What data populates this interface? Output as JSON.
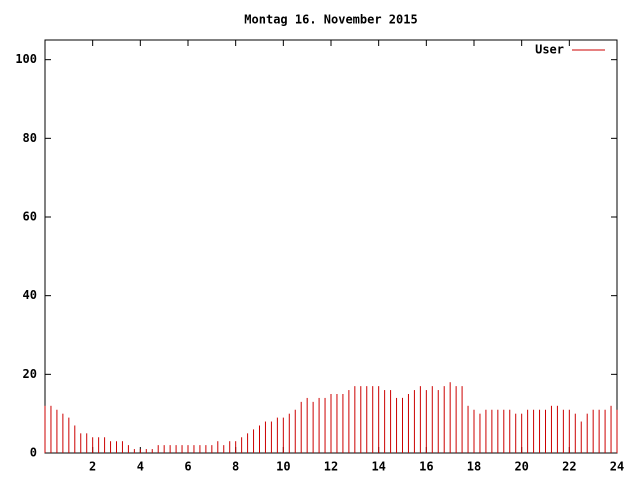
{
  "chart_data": {
    "type": "impulses",
    "title": "Montag 16. November 2015",
    "x": [
      0,
      0.25,
      0.5,
      0.75,
      1,
      1.25,
      1.5,
      1.75,
      2,
      2.25,
      2.5,
      2.75,
      3,
      3.25,
      3.5,
      3.75,
      4,
      4.25,
      4.5,
      4.75,
      5,
      5.25,
      5.5,
      5.75,
      6,
      6.25,
      6.5,
      6.75,
      7,
      7.25,
      7.5,
      7.75,
      8,
      8.25,
      8.5,
      8.75,
      9,
      9.25,
      9.5,
      9.75,
      10,
      10.25,
      10.5,
      10.75,
      11,
      11.25,
      11.5,
      11.75,
      12,
      12.25,
      12.5,
      12.75,
      13,
      13.25,
      13.5,
      13.75,
      14,
      14.25,
      14.5,
      14.75,
      15,
      15.25,
      15.5,
      15.75,
      16,
      16.25,
      16.5,
      16.75,
      17,
      17.25,
      17.5,
      17.75,
      18,
      18.25,
      18.5,
      18.75,
      19,
      19.25,
      19.5,
      19.75,
      20,
      20.25,
      20.5,
      20.75,
      21,
      21.25,
      21.5,
      21.75,
      22,
      22.25,
      22.5,
      22.75,
      23,
      23.25,
      23.5,
      23.75,
      24
    ],
    "series": [
      {
        "name": "User",
        "color": "#cc0000",
        "values": [
          12,
          12,
          11,
          10,
          9,
          7,
          5,
          5,
          4,
          4,
          4,
          3,
          3,
          3,
          2,
          1,
          1,
          1,
          1,
          2,
          2,
          2,
          2,
          2,
          2,
          2,
          2,
          2,
          2,
          3,
          2,
          3,
          3,
          4,
          5,
          6,
          7,
          8,
          8,
          9,
          9,
          10,
          11,
          13,
          14,
          13,
          14,
          14,
          15,
          15,
          15,
          16,
          17,
          17,
          17,
          17,
          17,
          16,
          16,
          14,
          14,
          15,
          16,
          17,
          16,
          17,
          16,
          17,
          18,
          17,
          17,
          12,
          11,
          10,
          11,
          11,
          11,
          11,
          11,
          10,
          10,
          11,
          11,
          11,
          11,
          12,
          12,
          11,
          11,
          10,
          8,
          10,
          11,
          11,
          11,
          12,
          11
        ]
      }
    ],
    "xlim": [
      0,
      24
    ],
    "xticks": [
      2,
      4,
      6,
      8,
      10,
      12,
      14,
      16,
      18,
      20,
      22,
      24
    ],
    "ylim": [
      0,
      105
    ],
    "yticks": [
      0,
      20,
      40,
      60,
      80,
      100
    ],
    "legend": "top-right"
  }
}
